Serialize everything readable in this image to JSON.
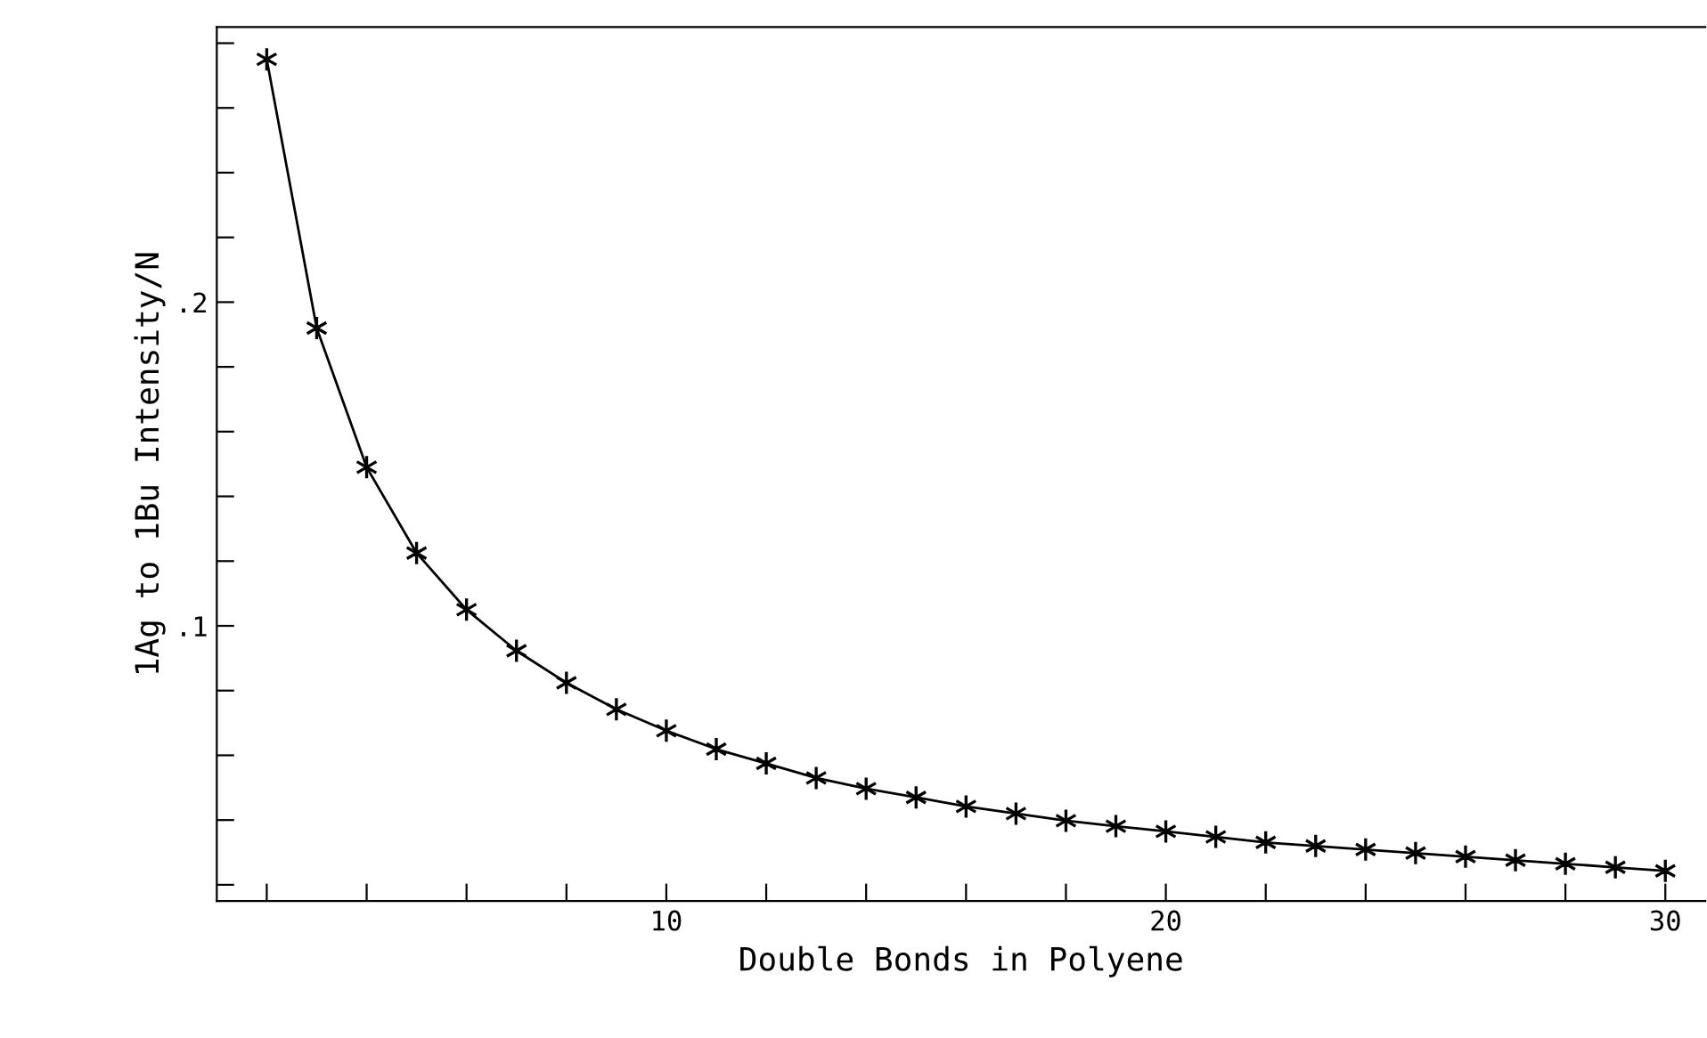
{
  "chart_data": {
    "type": "line",
    "xlabel": "Double Bonds in Polyene",
    "ylabel": "1Ag to 1Bu Intensity/N",
    "x": [
      2,
      3,
      4,
      5,
      6,
      7,
      8,
      9,
      10,
      11,
      12,
      13,
      14,
      15,
      16,
      17,
      18,
      19,
      20,
      21,
      22,
      23,
      24,
      25,
      26,
      27,
      28,
      29,
      30
    ],
    "series": [
      {
        "color": "#000000",
        "values": [
          0.275,
          0.192,
          0.149,
          0.1225,
          0.105,
          0.0923,
          0.0824,
          0.0742,
          0.0676,
          0.0619,
          0.0575,
          0.053,
          0.0497,
          0.047,
          0.0442,
          0.042,
          0.0398,
          0.0381,
          0.0365,
          0.0348,
          0.0331,
          0.032,
          0.0309,
          0.0298,
          0.0287,
          0.0276,
          0.0265,
          0.0254,
          0.0243
        ]
      }
    ],
    "marker": "cross",
    "line_style": "solid",
    "grid": false,
    "legend": false,
    "xlim": [
      1,
      30.8
    ],
    "ylim": [
      0.015,
      0.285
    ],
    "xticks": [
      {
        "value": 2,
        "label": null
      },
      {
        "value": 4,
        "label": null
      },
      {
        "value": 6,
        "label": null
      },
      {
        "value": 8,
        "label": null
      },
      10,
      {
        "value": 12,
        "label": null
      },
      {
        "value": 14,
        "label": null
      },
      {
        "value": 16,
        "label": null
      },
      {
        "value": 18,
        "label": null
      },
      20,
      {
        "value": 22,
        "label": null
      },
      {
        "value": 24,
        "label": null
      },
      {
        "value": 26,
        "label": null
      },
      {
        "value": 28,
        "label": null
      },
      30
    ],
    "yticks": [
      {
        "value": 0.02,
        "label": null
      },
      {
        "value": 0.04,
        "label": null
      },
      {
        "value": 0.06,
        "label": null
      },
      {
        "value": 0.08,
        "label": null
      },
      {
        "value": 0.1,
        "label": ".1"
      },
      {
        "value": 0.12,
        "label": null
      },
      {
        "value": 0.14,
        "label": null
      },
      {
        "value": 0.16,
        "label": null
      },
      {
        "value": 0.18,
        "label": null
      },
      {
        "value": 0.2,
        "label": ".2"
      },
      {
        "value": 0.22,
        "label": null
      },
      {
        "value": 0.24,
        "label": null
      },
      {
        "value": 0.26,
        "label": null
      },
      {
        "value": 0.28,
        "label": null
      }
    ]
  }
}
